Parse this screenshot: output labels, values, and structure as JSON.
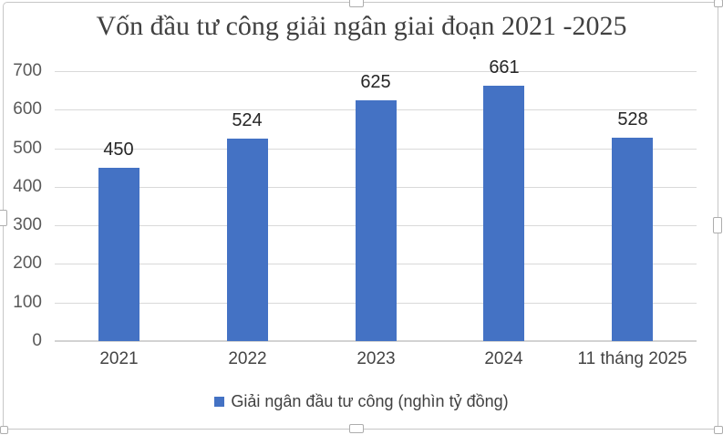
{
  "chart_data": {
    "type": "bar",
    "title": "Vốn đầu tư công giải ngân giai đoạn 2021 -2025",
    "categories": [
      "2021",
      "2022",
      "2023",
      "2024",
      "11 tháng 2025"
    ],
    "series": [
      {
        "name": "Giải ngân đầu tư công (nghìn tỷ đồng)",
        "values": [
          450,
          524,
          625,
          661,
          528
        ]
      }
    ],
    "data_labels_shown": true,
    "xlabel": "",
    "ylabel": "",
    "ylim": [
      0,
      700
    ],
    "yticks": [
      0,
      100,
      200,
      300,
      400,
      500,
      600,
      700
    ],
    "grid": true,
    "legend_position": "bottom",
    "colors": {
      "bar": "#4472C4",
      "gridline": "#D9D9D9",
      "axis_line": "#D2D2D2",
      "title": "#404040",
      "tick_label": "#595959",
      "category_label": "#444444",
      "data_label": "#262626",
      "legend_text": "#404040",
      "frame_border": "#C7C7C7"
    }
  }
}
